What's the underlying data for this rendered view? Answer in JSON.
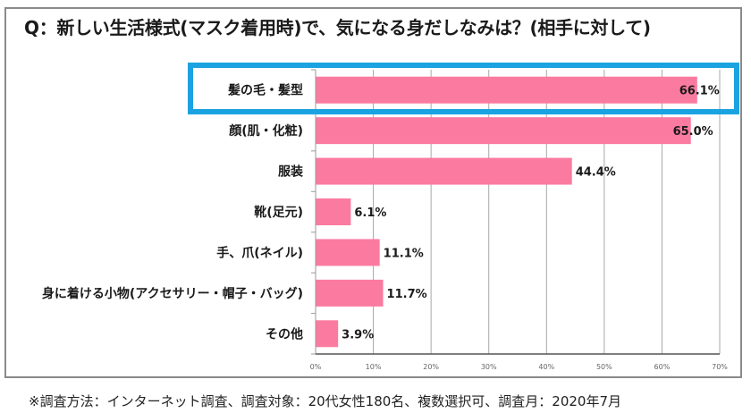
{
  "chart_data": {
    "type": "bar",
    "orientation": "horizontal",
    "title": "Q：新しい生活様式(マスク着用時)で、気になる身だしなみは？(相手に対して)",
    "categories": [
      "髪の毛・髪型",
      "顔(肌・化粧)",
      "服装",
      "靴(足元)",
      "手、爪(ネイル)",
      "身に着ける小物(アクセサリー・帽子・バッグ)",
      "その他"
    ],
    "values": [
      66.1,
      65.0,
      44.4,
      6.1,
      11.1,
      11.7,
      3.9
    ],
    "value_labels": [
      "66.1%",
      "65.0%",
      "44.4%",
      "6.1%",
      "11.1%",
      "11.7%",
      "3.9%"
    ],
    "xlim": [
      0,
      70
    ],
    "xticks": [
      0,
      10,
      20,
      30,
      40,
      50,
      60,
      70
    ],
    "xtick_labels": [
      "0%",
      "10%",
      "20%",
      "30%",
      "40%",
      "50%",
      "60%",
      "70%"
    ],
    "xlabel": "",
    "ylabel": "",
    "grid": true,
    "highlighted_category": "髪の毛・髪型",
    "bar_color": "#fb7aa0",
    "highlight_color": "#1aa3e0"
  },
  "footnote": "※調査方法：インターネット調査、調査対象：20代女性180名、複数選択可、調査月：2020年7月"
}
